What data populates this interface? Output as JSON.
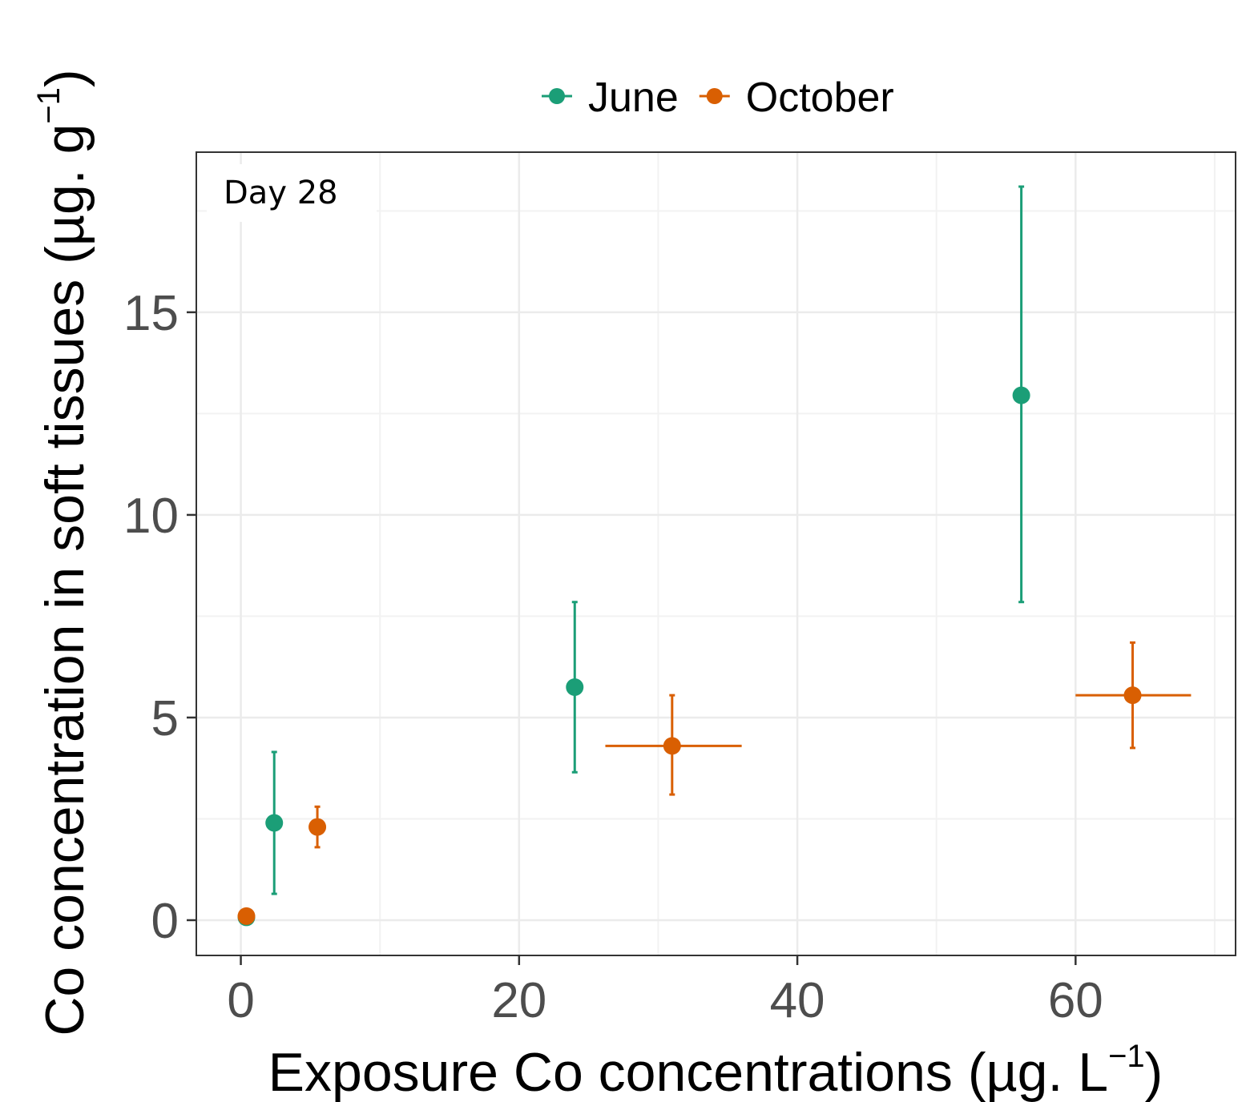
{
  "chart_data": {
    "type": "scatter",
    "annotation": "Day 28",
    "xlabel": {
      "main": "Exposure Co concentrations (µg. L",
      "sup": "−1",
      "close": ")"
    },
    "ylabel": {
      "main": "Co concentration in soft tissues (µg. g",
      "sup": "−1",
      "close": ")"
    },
    "x_ticks": [
      0,
      20,
      40,
      60
    ],
    "y_ticks": [
      0,
      5,
      10,
      15
    ],
    "xlim": [
      -3.2,
      71.5
    ],
    "ylim": [
      -0.87,
      18.95
    ],
    "grid": true,
    "legend_position": "top",
    "series": [
      {
        "name": "June",
        "color": "#1b9e77",
        "points": [
          {
            "x": 0.4,
            "y": 0.07,
            "ylo": 0.07,
            "yhi": 0.07
          },
          {
            "x": 2.4,
            "y": 2.4,
            "ylo": 0.65,
            "yhi": 4.15
          },
          {
            "x": 24.0,
            "y": 5.75,
            "ylo": 3.65,
            "yhi": 7.85
          },
          {
            "x": 56.1,
            "y": 12.95,
            "ylo": 7.85,
            "yhi": 18.1
          }
        ]
      },
      {
        "name": "October",
        "color": "#d95f02",
        "points": [
          {
            "x": 0.4,
            "y": 0.1,
            "ylo": 0.1,
            "yhi": 0.1
          },
          {
            "x": 5.5,
            "y": 2.3,
            "ylo": 1.8,
            "yhi": 2.8
          },
          {
            "x": 31.0,
            "y": 4.3,
            "ylo": 3.1,
            "yhi": 5.55,
            "xlo": 26.2,
            "xhi": 36.0
          },
          {
            "x": 64.1,
            "y": 5.55,
            "ylo": 4.25,
            "yhi": 6.85,
            "xlo": 60.0,
            "xhi": 68.3
          }
        ]
      }
    ]
  }
}
